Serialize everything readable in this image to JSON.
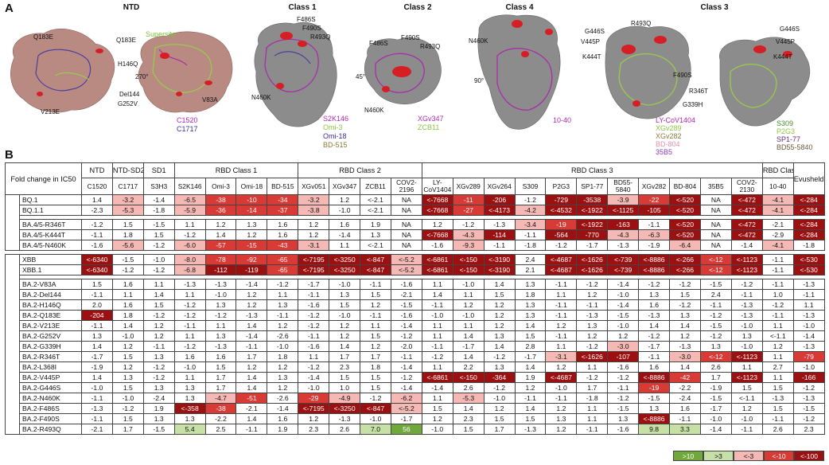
{
  "panelA": {
    "letter": "A",
    "titles": [
      "NTD",
      "Class 1",
      "Class 2",
      "Class 4",
      "Class 3"
    ],
    "ntd": {
      "supersite": "Supersite",
      "rotation": "270°",
      "mutations": [
        "Q183E",
        "Q183E",
        "H146Q",
        "Del144",
        "G252V",
        "V213E",
        "V83A"
      ],
      "antibodies": [
        "C1520",
        "C1717"
      ]
    },
    "class1": {
      "mutations": [
        "F486S",
        "F490S",
        "R493Q",
        "N460K"
      ],
      "antibodies": [
        "S2K146",
        "Omi-3",
        "Omi-18",
        "BD-515"
      ]
    },
    "class2": {
      "rotation": "45°",
      "mutations": [
        "F486S",
        "F490S",
        "R493Q",
        "N460K"
      ],
      "antibodies": [
        "XGv347",
        "ZCB11"
      ]
    },
    "class4": {
      "rotation": "90°",
      "mutations": [
        "N460K"
      ],
      "antibodies": [
        "10-40"
      ]
    },
    "class3": {
      "mutations": [
        "R493Q",
        "G446S",
        "V445P",
        "K444T",
        "F490S",
        "R346T",
        "G339H",
        "G446S",
        "V445P",
        "K444T"
      ],
      "antibodies_left": [
        "LY-CoV1404",
        "XGv289",
        "XGv282",
        "BD-804",
        "35B5"
      ],
      "antibodies_right": [
        "S309",
        "P2G3",
        "SP1-77",
        "BD55-5840"
      ]
    }
  },
  "panelB": {
    "letter": "B",
    "corner_header": "Fold change in IC50",
    "groups": [
      "NTD",
      "NTD-SD2",
      "SD1",
      "RBD Class 1",
      "RBD Class 2",
      "RBD Class 3",
      "RBD Class 4",
      "Evusheld"
    ],
    "antibodies": [
      "C1520",
      "C1717",
      "S3H3",
      "S2K146",
      "Omi-3",
      "Omi-18",
      "BD-515",
      "XGv051",
      "XGv347",
      "ZCB11",
      "COV2-2196",
      "LY-CoV1404",
      "XGv289",
      "XGv264",
      "S309",
      "P2G3",
      "SP1-77",
      "BD55-5840",
      "XGv282",
      "BD-804",
      "35B5",
      "COV2-2130",
      "10-40",
      ""
    ],
    "side_labels": [
      "Relative to BA.4/5",
      "Relative to BA.2"
    ],
    "rows_ba45_a": [
      {
        "label": "BQ.1",
        "values": [
          "1.4",
          "-3.2",
          "-1.4",
          "-6.5",
          "-38",
          "-10",
          "-34",
          "-3.2",
          "1.2",
          "<-2.1",
          "NA",
          "<-7668",
          "-11",
          "-206",
          "-1.2",
          "-729",
          "-3538",
          "-3.9",
          "-22",
          "<-520",
          "NA",
          "<-472",
          "-4.1",
          "<-284"
        ]
      },
      {
        "label": "BQ.1.1",
        "values": [
          "-2.3",
          "-5.3",
          "-1.8",
          "-5.9",
          "-36",
          "-14",
          "-37",
          "-3.8",
          "-1.0",
          "<-2.1",
          "NA",
          "<-7668",
          "-27",
          "<-4173",
          "-4.2",
          "<-4532",
          "<-1922",
          "<-1125",
          "-105",
          "<-520",
          "NA",
          "<-472",
          "-4.1",
          "<-284"
        ]
      }
    ],
    "rows_ba45_b": [
      {
        "label": "BA.4/5-R346T",
        "values": [
          "-1.2",
          "1.5",
          "-1.5",
          "1.1",
          "1.2",
          "1.3",
          "1.6",
          "1.2",
          "1.6",
          "1.9",
          "NA",
          "1.2",
          "-1.2",
          "-1.3",
          "-3.4",
          "-19",
          "<-1922",
          "-163",
          "-1.1",
          "<-520",
          "NA",
          "<-472",
          "-2.1",
          "<-284"
        ]
      },
      {
        "label": "BA.4/5-K444T",
        "values": [
          "-1.1",
          "1.8",
          "1.5",
          "-1.2",
          "1.4",
          "1.2",
          "1.6",
          "1.2",
          "-1.4",
          "1.3",
          "NA",
          "<-7668",
          "-4.3",
          "-114",
          "-1.1",
          "-564",
          "-770",
          "-4.3",
          "-6.3",
          "<-520",
          "NA",
          "<-472",
          "-2.9",
          "<-284"
        ]
      },
      {
        "label": "BA.4/5-N460K",
        "values": [
          "-1.6",
          "-5.6",
          "-1.2",
          "-6.0",
          "-57",
          "-15",
          "-43",
          "-3.1",
          "1.1",
          "<-2.1",
          "NA",
          "-1.6",
          "-9.3",
          "-1.1",
          "-1.8",
          "-1.2",
          "-1.7",
          "-1.3",
          "-1.9",
          "-6.4",
          "NA",
          "-1.4",
          "-4.1",
          "-1.8"
        ]
      }
    ],
    "rows_ba2_a": [
      {
        "label": "XBB",
        "values": [
          "<-6340",
          "-1.5",
          "-1.0",
          "-8.0",
          "-78",
          "-92",
          "-65",
          "<-7195",
          "<-3250",
          "<-847",
          "<-5.2",
          "<-6861",
          "<-150",
          "<-3190",
          "2.4",
          "<-4687",
          "<-1626",
          "<-739",
          "<-8886",
          "<-266",
          "<-12",
          "<-1123",
          "-1.1",
          "<-530"
        ]
      },
      {
        "label": "XBB.1",
        "values": [
          "<-6340",
          "-1.2",
          "-1.2",
          "-6.8",
          "-112",
          "-119",
          "-65",
          "<-7195",
          "<-3250",
          "<-847",
          "<-5.2",
          "<-6861",
          "<-150",
          "<-3190",
          "2.1",
          "<-4687",
          "<-1626",
          "<-739",
          "<-8886",
          "<-266",
          "<-12",
          "<-1123",
          "-1.1",
          "<-530"
        ]
      }
    ],
    "rows_ba2_b": [
      {
        "label": "BA.2-V83A",
        "values": [
          "1.5",
          "1.6",
          "1.1",
          "-1.3",
          "-1.3",
          "-1.4",
          "-1.2",
          "-1.7",
          "-1.0",
          "-1.1",
          "-1.6",
          "1.1",
          "-1.0",
          "1.4",
          "1.3",
          "-1.1",
          "-1.2",
          "-1.4",
          "-1.2",
          "-1.2",
          "-1.5",
          "-1.2",
          "-1.1",
          "-1.3"
        ]
      },
      {
        "label": "BA.2-Del144",
        "values": [
          "-1.1",
          "1.1",
          "1.4",
          "1.1",
          "-1.0",
          "1.2",
          "1.1",
          "-1.1",
          "1.3",
          "1.5",
          "-2.1",
          "1.4",
          "1.1",
          "1.5",
          "1.8",
          "1.1",
          "1.2",
          "-1.0",
          "1.3",
          "1.5",
          "2.4",
          "-1.1",
          "1.0",
          "-1.1"
        ]
      },
      {
        "label": "BA.2-H146Q",
        "values": [
          "2.0",
          "1.6",
          "1.5",
          "-1.2",
          "1.3",
          "1.2",
          "1.3",
          "-1.6",
          "1.5",
          "1.2",
          "-1.5",
          "-1.1",
          "1.2",
          "1.2",
          "1.3",
          "-1.1",
          "-1.1",
          "-1.4",
          "1.6",
          "-1.2",
          "-1.1",
          "-1.3",
          "-1.2",
          "1.1"
        ]
      },
      {
        "label": "BA.2-Q183E",
        "values": [
          "-204",
          "1.8",
          "-1.2",
          "-1.2",
          "-1.2",
          "-1.3",
          "-1.1",
          "-1.2",
          "-1.0",
          "-1.1",
          "-1.6",
          "-1.0",
          "-1.0",
          "1.2",
          "1.3",
          "-1.1",
          "-1.3",
          "-1.5",
          "-1.3",
          "1.3",
          "-1.2",
          "-1.3",
          "-1.1",
          "-1.3"
        ]
      },
      {
        "label": "BA.2-V213E",
        "values": [
          "-1.1",
          "1.4",
          "1.2",
          "-1.1",
          "1.1",
          "1.4",
          "1.2",
          "-1.2",
          "1.2",
          "1.1",
          "-1.4",
          "1.1",
          "1.1",
          "1.2",
          "1.4",
          "1.2",
          "1.3",
          "-1.0",
          "1.4",
          "1.4",
          "-1.5",
          "-1.0",
          "1.1",
          "-1.0"
        ]
      },
      {
        "label": "BA.2-G252V",
        "values": [
          "1.3",
          "-1.0",
          "1.2",
          "1.1",
          "1.3",
          "-1.4",
          "-2.6",
          "-1.1",
          "1.2",
          "1.5",
          "-1.2",
          "1.1",
          "1.4",
          "1.3",
          "1.5",
          "-1.1",
          "1.2",
          "1.2",
          "-1.2",
          "1.2",
          "-1.2",
          "1.3",
          "<-1.1",
          "-1.4"
        ]
      },
      {
        "label": "BA.2-G339H",
        "values": [
          "1.4",
          "1.2",
          "-1.1",
          "-1.2",
          "-1.3",
          "-1.1",
          "-1.0",
          "-1.6",
          "1.4",
          "1.2",
          "-2.0",
          "-1.1",
          "-1.7",
          "1.4",
          "2.8",
          "1.1",
          "-1.2",
          "-3.0",
          "-1.7",
          "-1.3",
          "1.3",
          "-1.0",
          "1.2",
          "-1.3"
        ]
      },
      {
        "label": "BA.2-R346T",
        "values": [
          "-1.7",
          "1.5",
          "1.3",
          "1.6",
          "1.6",
          "1.7",
          "1.8",
          "1.1",
          "1.7",
          "1.7",
          "-1.1",
          "-1.2",
          "1.4",
          "-1.2",
          "-1.7",
          "-3.1",
          "<-1626",
          "-107",
          "-1.1",
          "-3.0",
          "<-12",
          "<-1123",
          "1.1",
          "-79"
        ]
      },
      {
        "label": "BA.2-L368I",
        "values": [
          "-1.9",
          "1.2",
          "-1.2",
          "-1.0",
          "1.5",
          "1.2",
          "1.2",
          "-1.2",
          "2.3",
          "1.8",
          "-1.4",
          "1.1",
          "2.2",
          "1.3",
          "1.4",
          "1.2",
          "1.1",
          "-1.6",
          "1.6",
          "1.4",
          "2.6",
          "1.1",
          "2.7",
          "-1.0"
        ]
      },
      {
        "label": "BA.2-V445P",
        "values": [
          "1.4",
          "1.3",
          "-1.2",
          "1.1",
          "1.7",
          "1.4",
          "1.3",
          "-1.4",
          "1.5",
          "1.5",
          "-1.2",
          "<-6861",
          "<-150",
          "-364",
          "1.9",
          "<-4687",
          "-1.2",
          "-1.2",
          "<-8886",
          "-42",
          "1.7",
          "<-1123",
          "1.1",
          "-166"
        ]
      },
      {
        "label": "BA.2-G446S",
        "values": [
          "-1.0",
          "1.5",
          "1.3",
          "1.3",
          "1.7",
          "1.4",
          "1.2",
          "-1.0",
          "1.0",
          "1.5",
          "-1.4",
          "-1.4",
          "2.6",
          "-1.2",
          "1.2",
          "-1.0",
          "1.7",
          "-1.1",
          "-19",
          "-2.2",
          "-1.9",
          "1.5",
          "1.5",
          "-1.2"
        ]
      },
      {
        "label": "BA.2-N460K",
        "values": [
          "-1.1",
          "-1.0",
          "-2.4",
          "1.3",
          "-4.7",
          "-51",
          "-2.6",
          "-29",
          "-4.9",
          "-1.2",
          "-6.2",
          "1.1",
          "-5.3",
          "-1.0",
          "-1.1",
          "-1.1",
          "-1.8",
          "-1.2",
          "-1.5",
          "-2.4",
          "-1.5",
          "<-1.1",
          "-1.3",
          "-1.3"
        ]
      },
      {
        "label": "BA.2-F486S",
        "values": [
          "-1.3",
          "-1.2",
          "1.9",
          "<-358",
          "-38",
          "-2.1",
          "-1.4",
          "<-7195",
          "<-3250",
          "<-847",
          "<-5.2",
          "1.5",
          "1.4",
          "1.2",
          "1.4",
          "1.2",
          "1.1",
          "-1.5",
          "1.3",
          "1.6",
          "-1.7",
          "1.2",
          "1.5",
          "-1.5"
        ]
      },
      {
        "label": "BA.2-F490S",
        "values": [
          "-1.1",
          "1.5",
          "1.3",
          "1.3",
          "-2.2",
          "1.4",
          "1.6",
          "1.2",
          "-1.3",
          "-1.0",
          "-1.7",
          "1.2",
          "2.3",
          "1.5",
          "1.5",
          "1.3",
          "1.1",
          "1.3",
          "<-8886",
          "-1.1",
          "-1.0",
          "-1.0",
          "-1.1",
          "-1.2"
        ]
      },
      {
        "label": "BA.2-R493Q",
        "values": [
          "-2.1",
          "1.7",
          "-1.5",
          "5.4",
          "2.5",
          "-1.1",
          "1.9",
          "2.3",
          "2.6",
          "7.0",
          "56",
          "-1.0",
          "1.5",
          "1.7",
          "-1.3",
          "1.2",
          "-1.1",
          "-1.6",
          "9.8",
          "3.3",
          "-1.4",
          "-1.1",
          "2.6",
          "2.3"
        ]
      }
    ],
    "legend": [
      ">10",
      ">3",
      "<-3",
      "<-10",
      "<-100"
    ],
    "colors": {
      "light_red": "#f4b9b5",
      "red": "#d83a35",
      "dark_red": "#9b1010",
      "light_green": "#c6e0a6",
      "green": "#70a83b"
    }
  }
}
